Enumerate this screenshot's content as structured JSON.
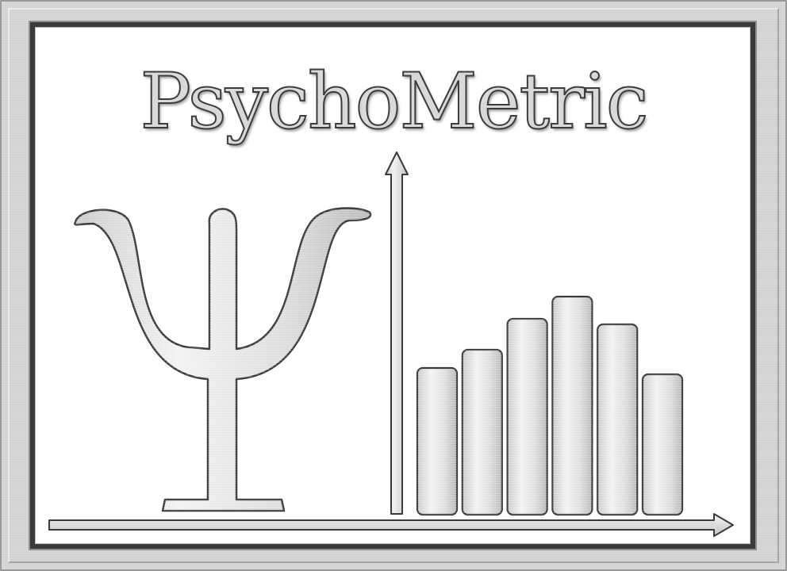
{
  "title": "PsychoMetric",
  "icon": "psi-symbol",
  "colors": {
    "metal_light": "#e8e8e8",
    "metal_dark": "#3a3a3a",
    "background": "#ffffff"
  },
  "chart_data": {
    "type": "bar",
    "categories": [
      "",
      "",
      "",
      "",
      "",
      ""
    ],
    "values": [
      185,
      208,
      247,
      275,
      240,
      177
    ],
    "title": "",
    "xlabel": "",
    "ylabel": "",
    "ylim": [
      0,
      450
    ]
  }
}
